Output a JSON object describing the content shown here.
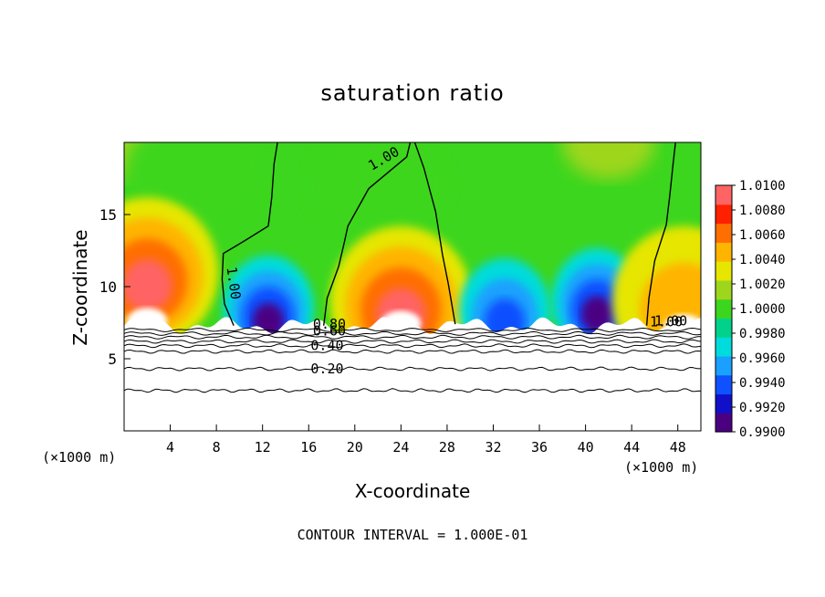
{
  "chart_data": {
    "type": "heatmap",
    "title": "saturation ratio",
    "xlabel": "X-coordinate",
    "ylabel": "Z-coordinate",
    "x_unit_note_left": "(×1000 m)",
    "x_unit_note_right": "(×1000 m)",
    "footnote": "CONTOUR INTERVAL = 1.000E-01",
    "xlim": [
      0,
      50
    ],
    "ylim": [
      0,
      20
    ],
    "x_ticks": [
      "4",
      "8",
      "12",
      "16",
      "20",
      "24",
      "28",
      "32",
      "36",
      "40",
      "44",
      "48"
    ],
    "y_ticks": [
      "5",
      "10",
      "15"
    ],
    "colorbar": {
      "min": 0.99,
      "max": 1.01,
      "labels": [
        "1.0100",
        "1.0080",
        "1.0060",
        "1.0040",
        "1.0020",
        "1.0000",
        "0.9980",
        "0.9960",
        "0.9940",
        "0.9920",
        "0.9900"
      ],
      "colors": [
        "#4b0082",
        "#1010c8",
        "#0f50ff",
        "#1aa0ff",
        "#00dcdc",
        "#00d28c",
        "#3cd61e",
        "#9ed61e",
        "#e6e600",
        "#ffb400",
        "#ff6e00",
        "#ff2000",
        "#ff6464"
      ]
    },
    "contour_labels": [
      "1.00",
      "1.00",
      "1.00",
      "1.00",
      "0.80",
      "0.60",
      "0.40",
      "0.20"
    ],
    "lower_region_contours": [
      0.2,
      0.4,
      0.6,
      0.8
    ],
    "saturation_features": [
      {
        "kind": "supersaturated",
        "x": 2,
        "z": 11,
        "peak": 1.008
      },
      {
        "kind": "subsaturated",
        "x": 12.5,
        "z": 8.5,
        "peak": 0.992
      },
      {
        "kind": "supersaturated",
        "x": 24,
        "z": 9,
        "peak": 1.008
      },
      {
        "kind": "subsaturated",
        "x": 33,
        "z": 8.3,
        "peak": 0.994
      },
      {
        "kind": "subsaturated",
        "x": 41,
        "z": 9,
        "peak": 0.991
      },
      {
        "kind": "supersaturated",
        "x": 48.5,
        "z": 9,
        "peak": 1.005
      }
    ]
  }
}
